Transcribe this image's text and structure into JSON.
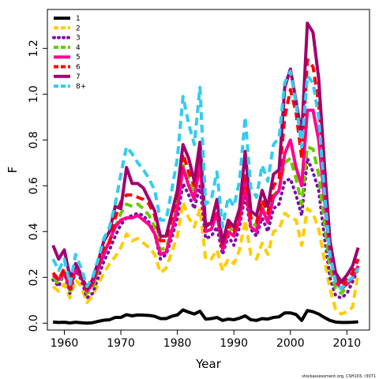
{
  "chart_data": {
    "type": "line",
    "title": "",
    "xlabel": "Year",
    "ylabel": "F",
    "xlim": [
      1957,
      2014
    ],
    "ylim": [
      -0.03,
      1.37
    ],
    "x_ticks": [
      1960,
      1970,
      1980,
      1990,
      2000,
      2010
    ],
    "x_tick_labels": [
      "1960",
      "1970",
      "1980",
      "1990",
      "2000",
      "2010"
    ],
    "y_ticks": [
      0.0,
      0.2,
      0.4,
      0.6,
      0.8,
      1.0,
      1.2
    ],
    "y_tick_labels": [
      "0.0",
      "0.2",
      "0.4",
      "0.6",
      "0.8",
      "1.0",
      "1.2"
    ],
    "grid": false,
    "legend_position": "top-left",
    "x": [
      1958,
      1959,
      1960,
      1961,
      1962,
      1963,
      1964,
      1965,
      1966,
      1967,
      1968,
      1969,
      1970,
      1971,
      1972,
      1973,
      1974,
      1975,
      1976,
      1977,
      1978,
      1979,
      1980,
      1981,
      1982,
      1983,
      1984,
      1985,
      1986,
      1987,
      1988,
      1989,
      1990,
      1991,
      1992,
      1993,
      1994,
      1995,
      1996,
      1997,
      1998,
      1999,
      2000,
      2001,
      2002,
      2003,
      2004,
      2005,
      2006,
      2007,
      2008,
      2009,
      2010,
      2011,
      2012
    ],
    "series": [
      {
        "name": "1",
        "color": "#000000",
        "dash": "solid",
        "values": [
          0.005,
          0.003,
          0.004,
          0.001,
          0.004,
          0.002,
          0.0,
          0.002,
          0.008,
          0.013,
          0.015,
          0.025,
          0.025,
          0.037,
          0.032,
          0.036,
          0.035,
          0.034,
          0.03,
          0.02,
          0.02,
          0.03,
          0.036,
          0.058,
          0.048,
          0.04,
          0.052,
          0.018,
          0.02,
          0.025,
          0.012,
          0.018,
          0.015,
          0.022,
          0.032,
          0.015,
          0.012,
          0.02,
          0.018,
          0.025,
          0.028,
          0.045,
          0.045,
          0.038,
          0.012,
          0.055,
          0.05,
          0.04,
          0.025,
          0.012,
          0.005,
          0.003,
          0.003,
          0.004,
          0.006
        ]
      },
      {
        "name": "2",
        "color": "#ffcc00",
        "dash": "dashed",
        "values": [
          0.16,
          0.14,
          0.17,
          0.11,
          0.19,
          0.16,
          0.09,
          0.12,
          0.17,
          0.22,
          0.26,
          0.29,
          0.33,
          0.39,
          0.36,
          0.37,
          0.35,
          0.33,
          0.3,
          0.22,
          0.24,
          0.31,
          0.38,
          0.53,
          0.46,
          0.42,
          0.5,
          0.28,
          0.28,
          0.32,
          0.23,
          0.28,
          0.26,
          0.32,
          0.45,
          0.3,
          0.28,
          0.35,
          0.3,
          0.4,
          0.41,
          0.48,
          0.46,
          0.45,
          0.34,
          0.5,
          0.48,
          0.41,
          0.28,
          0.15,
          0.06,
          0.04,
          0.05,
          0.07,
          0.22
        ]
      },
      {
        "name": "3",
        "color": "#7b0fa8",
        "dash": "dotted",
        "values": [
          0.19,
          0.16,
          0.22,
          0.13,
          0.23,
          0.19,
          0.11,
          0.13,
          0.2,
          0.27,
          0.32,
          0.38,
          0.43,
          0.46,
          0.47,
          0.48,
          0.47,
          0.44,
          0.39,
          0.28,
          0.3,
          0.37,
          0.46,
          0.61,
          0.56,
          0.5,
          0.6,
          0.37,
          0.38,
          0.42,
          0.3,
          0.38,
          0.34,
          0.42,
          0.56,
          0.41,
          0.38,
          0.46,
          0.4,
          0.5,
          0.52,
          0.62,
          0.63,
          0.56,
          0.47,
          0.72,
          0.66,
          0.58,
          0.38,
          0.2,
          0.12,
          0.11,
          0.13,
          0.18,
          0.24
        ]
      },
      {
        "name": "4",
        "color": "#66cc00",
        "dash": "dashed",
        "values": [
          0.2,
          0.17,
          0.23,
          0.14,
          0.26,
          0.21,
          0.13,
          0.15,
          0.23,
          0.31,
          0.36,
          0.42,
          0.48,
          0.52,
          0.51,
          0.52,
          0.5,
          0.47,
          0.42,
          0.32,
          0.33,
          0.4,
          0.52,
          0.69,
          0.63,
          0.56,
          0.7,
          0.42,
          0.43,
          0.47,
          0.34,
          0.43,
          0.39,
          0.47,
          0.63,
          0.45,
          0.42,
          0.51,
          0.45,
          0.56,
          0.58,
          0.7,
          0.72,
          0.63,
          0.52,
          0.77,
          0.76,
          0.65,
          0.44,
          0.24,
          0.15,
          0.13,
          0.16,
          0.21,
          0.23
        ]
      },
      {
        "name": "5",
        "color": "#ff0090",
        "dash": "solid",
        "values": [
          0.21,
          0.19,
          0.22,
          0.15,
          0.24,
          0.2,
          0.14,
          0.17,
          0.24,
          0.3,
          0.36,
          0.42,
          0.45,
          0.46,
          0.46,
          0.47,
          0.45,
          0.43,
          0.39,
          0.3,
          0.31,
          0.4,
          0.5,
          0.68,
          0.6,
          0.54,
          0.7,
          0.4,
          0.41,
          0.48,
          0.32,
          0.4,
          0.38,
          0.45,
          0.61,
          0.42,
          0.4,
          0.5,
          0.44,
          0.55,
          0.58,
          0.74,
          0.8,
          0.68,
          0.6,
          0.93,
          0.93,
          0.8,
          0.55,
          0.3,
          0.18,
          0.15,
          0.17,
          0.2,
          0.25
        ]
      },
      {
        "name": "6",
        "color": "#ff0000",
        "dash": "dashed",
        "values": [
          0.22,
          0.19,
          0.24,
          0.15,
          0.26,
          0.2,
          0.14,
          0.18,
          0.25,
          0.33,
          0.35,
          0.46,
          0.53,
          0.56,
          0.56,
          0.55,
          0.54,
          0.52,
          0.47,
          0.36,
          0.36,
          0.46,
          0.56,
          0.74,
          0.66,
          0.6,
          0.76,
          0.43,
          0.44,
          0.52,
          0.34,
          0.43,
          0.4,
          0.48,
          0.66,
          0.46,
          0.44,
          0.54,
          0.48,
          0.6,
          0.63,
          0.9,
          1.02,
          0.92,
          0.72,
          1.15,
          1.12,
          0.96,
          0.64,
          0.34,
          0.2,
          0.16,
          0.19,
          0.22,
          0.28
        ]
      },
      {
        "name": "7",
        "color": "#a0006e",
        "dash": "solid",
        "values": [
          0.34,
          0.28,
          0.32,
          0.2,
          0.26,
          0.21,
          0.15,
          0.19,
          0.27,
          0.36,
          0.4,
          0.51,
          0.5,
          0.68,
          0.61,
          0.61,
          0.59,
          0.54,
          0.49,
          0.38,
          0.38,
          0.48,
          0.58,
          0.78,
          0.72,
          0.62,
          0.79,
          0.42,
          0.44,
          0.54,
          0.35,
          0.45,
          0.42,
          0.5,
          0.75,
          0.49,
          0.47,
          0.58,
          0.51,
          0.65,
          0.67,
          1.03,
          1.11,
          0.97,
          0.82,
          1.31,
          1.27,
          1.07,
          0.7,
          0.36,
          0.22,
          0.18,
          0.21,
          0.25,
          0.33
        ]
      },
      {
        "name": "8+",
        "color": "#33ccee",
        "dash": "dashed",
        "values": [
          0.28,
          0.23,
          0.28,
          0.17,
          0.3,
          0.24,
          0.16,
          0.2,
          0.28,
          0.37,
          0.42,
          0.52,
          0.65,
          0.77,
          0.74,
          0.7,
          0.67,
          0.63,
          0.58,
          0.45,
          0.45,
          0.58,
          0.72,
          0.99,
          0.87,
          0.78,
          1.03,
          0.52,
          0.54,
          0.66,
          0.42,
          0.55,
          0.51,
          0.62,
          0.9,
          0.59,
          0.55,
          0.69,
          0.62,
          0.78,
          0.81,
          1.05,
          1.1,
          0.96,
          0.77,
          1.08,
          1.05,
          0.9,
          0.58,
          0.3,
          0.18,
          0.15,
          0.18,
          0.2,
          0.24
        ]
      }
    ],
    "footnote": "stockassessment.org, CSH103, r3071"
  }
}
